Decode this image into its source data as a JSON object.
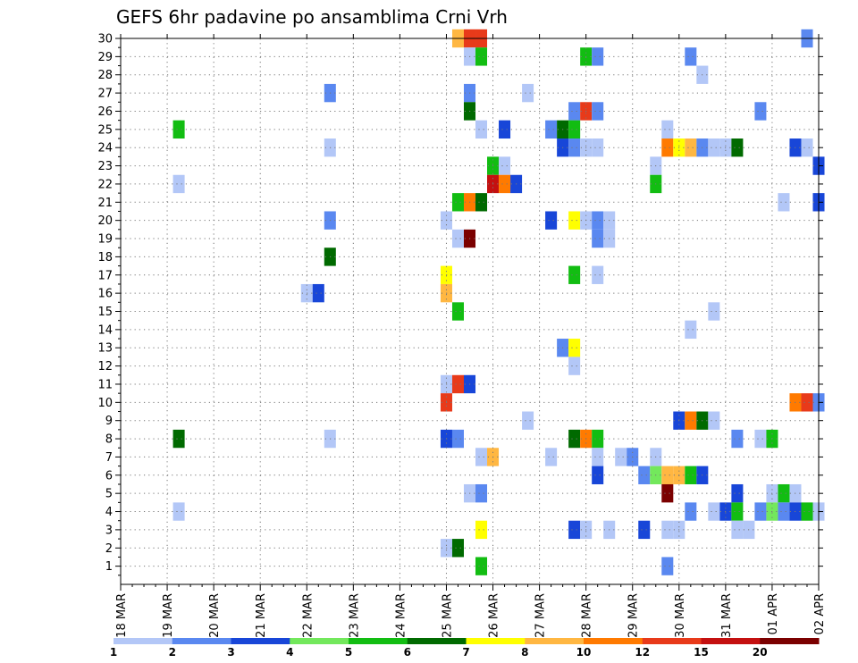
{
  "chart_data": {
    "type": "heatmap",
    "title": "GEFS 6hr padavine po ansamblima Crni Vrh",
    "xlabel": "",
    "ylabel": "",
    "x_tick_labels": [
      "18 MAR",
      "19 MAR",
      "20 MAR",
      "21 MAR",
      "22 MAR",
      "23 MAR",
      "24 MAR",
      "25 MAR",
      "26 MAR",
      "27 MAR",
      "28 MAR",
      "29 MAR",
      "30 MAR",
      "31 MAR",
      "01 APR",
      "02 APR"
    ],
    "x_range_days": [
      0,
      15
    ],
    "y_tick_labels": [
      "1",
      "2",
      "3",
      "4",
      "5",
      "6",
      "7",
      "8",
      "9",
      "10",
      "11",
      "12",
      "13",
      "14",
      "15",
      "16",
      "17",
      "18",
      "19",
      "20",
      "21",
      "22",
      "23",
      "24",
      "25",
      "26",
      "27",
      "28",
      "29",
      "30"
    ],
    "y_range": [
      0,
      30
    ],
    "grid": true,
    "legend_placement": "bottom",
    "legend_labels": [
      "1",
      "2",
      "3",
      "4",
      "5",
      "6",
      "7",
      "8",
      "10",
      "12",
      "15",
      "20"
    ],
    "legend_colors": [
      "#b3c7f7",
      "#5a88f0",
      "#1846d8",
      "#73e85c",
      "#12bd12",
      "#006a00",
      "#ffff00",
      "#ffb742",
      "#ff7a00",
      "#e83a1a",
      "#c41010",
      "#7b0000"
    ],
    "units": "mm",
    "cells": [
      [
        7.25,
        30,
        8
      ],
      [
        7.5,
        30,
        12
      ],
      [
        7.75,
        30,
        12
      ],
      [
        14.75,
        30,
        2
      ],
      [
        7.5,
        29,
        1
      ],
      [
        7.75,
        29,
        5
      ],
      [
        10,
        29,
        5
      ],
      [
        10.25,
        29,
        2
      ],
      [
        12.25,
        29,
        2
      ],
      [
        12.5,
        28,
        1
      ],
      [
        4.5,
        27,
        2
      ],
      [
        7.5,
        27,
        2
      ],
      [
        8.75,
        27,
        1
      ],
      [
        7.5,
        26,
        6
      ],
      [
        9.75,
        26,
        2
      ],
      [
        10,
        26,
        12
      ],
      [
        10.25,
        26,
        2
      ],
      [
        13.75,
        26,
        2
      ],
      [
        1.25,
        25,
        5
      ],
      [
        7.75,
        25,
        1
      ],
      [
        8.25,
        25,
        3
      ],
      [
        9.25,
        25,
        2
      ],
      [
        9.5,
        25,
        6
      ],
      [
        9.75,
        25,
        5
      ],
      [
        11.75,
        25,
        1
      ],
      [
        4.5,
        24,
        1
      ],
      [
        9.5,
        24,
        3
      ],
      [
        9.75,
        24,
        2
      ],
      [
        10,
        24,
        1
      ],
      [
        10.25,
        24,
        1
      ],
      [
        11.75,
        24,
        10
      ],
      [
        12,
        24,
        7
      ],
      [
        12.25,
        24,
        8
      ],
      [
        12.5,
        24,
        2
      ],
      [
        12.75,
        24,
        1
      ],
      [
        13,
        24,
        1
      ],
      [
        13.25,
        24,
        6
      ],
      [
        14.5,
        24,
        3
      ],
      [
        14.75,
        24,
        1
      ],
      [
        8,
        23,
        5
      ],
      [
        8.25,
        23,
        1
      ],
      [
        11.5,
        23,
        1
      ],
      [
        15,
        23,
        3
      ],
      [
        1.25,
        22,
        1
      ],
      [
        8,
        22,
        15
      ],
      [
        8.25,
        22,
        10
      ],
      [
        8.5,
        22,
        3
      ],
      [
        11.5,
        22,
        5
      ],
      [
        7.25,
        21,
        5
      ],
      [
        7.5,
        21,
        10
      ],
      [
        7.75,
        21,
        6
      ],
      [
        14.25,
        21,
        1
      ],
      [
        15,
        21,
        3
      ],
      [
        4.5,
        20,
        2
      ],
      [
        7,
        20,
        1
      ],
      [
        9.25,
        20,
        3
      ],
      [
        9.75,
        20,
        7
      ],
      [
        10,
        20,
        1
      ],
      [
        10.25,
        20,
        2
      ],
      [
        10.5,
        20,
        1
      ],
      [
        7.25,
        19,
        1
      ],
      [
        7.5,
        19,
        20
      ],
      [
        10.25,
        19,
        2
      ],
      [
        10.5,
        19,
        1
      ],
      [
        4.5,
        18,
        6
      ],
      [
        7,
        17,
        7
      ],
      [
        9.75,
        17,
        5
      ],
      [
        10.25,
        17,
        1
      ],
      [
        4,
        16,
        1
      ],
      [
        4.25,
        16,
        3
      ],
      [
        7,
        16,
        8
      ],
      [
        7.25,
        15,
        5
      ],
      [
        12.75,
        15,
        1
      ],
      [
        12.25,
        14,
        1
      ],
      [
        9.5,
        13,
        2
      ],
      [
        9.75,
        13,
        7
      ],
      [
        9.75,
        12,
        1
      ],
      [
        7,
        11,
        1
      ],
      [
        7.25,
        11,
        12
      ],
      [
        7.5,
        11,
        3
      ],
      [
        7,
        10,
        12
      ],
      [
        14.5,
        10,
        10
      ],
      [
        14.75,
        10,
        12
      ],
      [
        15,
        10,
        2
      ],
      [
        8.75,
        9,
        1
      ],
      [
        12,
        9,
        3
      ],
      [
        12.25,
        9,
        10
      ],
      [
        12.5,
        9,
        6
      ],
      [
        12.75,
        9,
        1
      ],
      [
        1.25,
        8,
        6
      ],
      [
        4.5,
        8,
        1
      ],
      [
        7,
        8,
        3
      ],
      [
        7.25,
        8,
        2
      ],
      [
        9.75,
        8,
        6
      ],
      [
        10,
        8,
        10
      ],
      [
        10.25,
        8,
        5
      ],
      [
        13.25,
        8,
        2
      ],
      [
        13.75,
        8,
        1
      ],
      [
        14,
        8,
        5
      ],
      [
        7.75,
        7,
        1
      ],
      [
        8,
        7,
        8
      ],
      [
        9.25,
        7,
        1
      ],
      [
        10.25,
        7,
        1
      ],
      [
        10.75,
        7,
        1
      ],
      [
        11,
        7,
        2
      ],
      [
        11.5,
        7,
        1
      ],
      [
        10.25,
        6,
        3
      ],
      [
        11.25,
        6,
        2
      ],
      [
        11.5,
        6,
        4
      ],
      [
        11.75,
        6,
        8
      ],
      [
        12,
        6,
        8
      ],
      [
        12.25,
        6,
        5
      ],
      [
        12.5,
        6,
        3
      ],
      [
        7.5,
        5,
        1
      ],
      [
        7.75,
        5,
        2
      ],
      [
        11.75,
        5,
        20
      ],
      [
        13.25,
        5,
        3
      ],
      [
        14,
        5,
        1
      ],
      [
        14.25,
        5,
        5
      ],
      [
        14.5,
        5,
        1
      ],
      [
        1.25,
        4,
        1
      ],
      [
        12.25,
        4,
        2
      ],
      [
        12.75,
        4,
        1
      ],
      [
        13,
        4,
        3
      ],
      [
        13.25,
        4,
        5
      ],
      [
        13.75,
        4,
        2
      ],
      [
        14,
        4,
        4
      ],
      [
        14.25,
        4,
        2
      ],
      [
        14.5,
        4,
        3
      ],
      [
        14.75,
        4,
        5
      ],
      [
        15,
        4,
        1
      ],
      [
        7.75,
        3,
        7
      ],
      [
        9.75,
        3,
        3
      ],
      [
        10,
        3,
        1
      ],
      [
        10.5,
        3,
        1
      ],
      [
        11.25,
        3,
        3
      ],
      [
        11.75,
        3,
        1
      ],
      [
        12,
        3,
        1
      ],
      [
        13.25,
        3,
        1
      ],
      [
        13.5,
        3,
        1
      ],
      [
        7,
        2,
        1
      ],
      [
        7.25,
        2,
        6
      ],
      [
        7.75,
        1,
        5
      ],
      [
        11.75,
        1,
        2
      ]
    ]
  }
}
